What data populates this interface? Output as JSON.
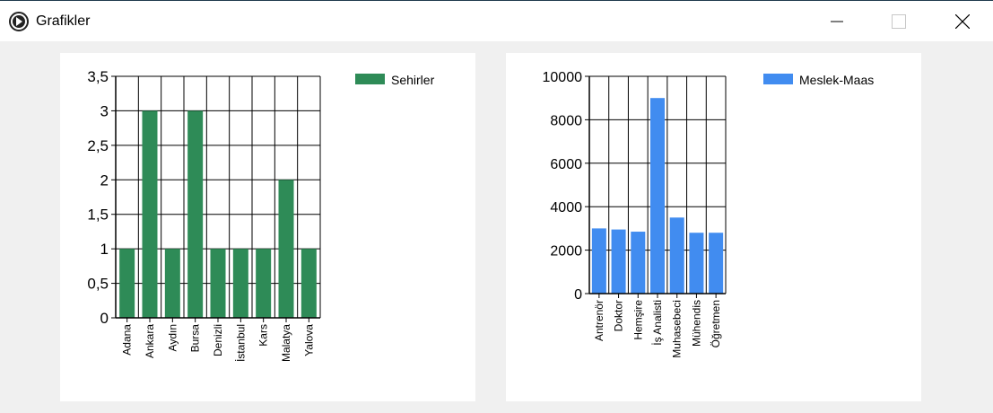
{
  "window": {
    "title": "Grafikler",
    "icon": "app-arrow-icon",
    "controls": [
      "minimize-icon",
      "maximize-icon",
      "close-icon"
    ]
  },
  "chart_data": [
    {
      "type": "bar",
      "categories": [
        "Adana",
        "Ankara",
        "Aydın",
        "Bursa",
        "Denizli",
        "İstanbul",
        "Kars",
        "Malatya",
        "Yalova"
      ],
      "series": [
        {
          "name": "Sehirler",
          "values": [
            1,
            3,
            1,
            3,
            1,
            1,
            1,
            2,
            1
          ],
          "color": "#2e8b57"
        }
      ],
      "yticks": [
        "0",
        "0,5",
        "1",
        "1,5",
        "2",
        "2,5",
        "3",
        "3,5"
      ],
      "ylim": [
        0,
        3.5
      ],
      "grid": true,
      "legend": "top-right"
    },
    {
      "type": "bar",
      "categories": [
        "Antrenör",
        "Doktor",
        "Hemşire",
        "İş Analisti",
        "Muhasebeci",
        "Mühendis",
        "Öğretmen"
      ],
      "series": [
        {
          "name": "Meslek-Maas",
          "values": [
            3000,
            2950,
            2850,
            9000,
            3500,
            2800,
            2800
          ],
          "color": "#418cf0"
        }
      ],
      "yticks": [
        "0",
        "2000",
        "4000",
        "6000",
        "8000",
        "10000"
      ],
      "ylim": [
        0,
        10000
      ],
      "grid": true,
      "legend": "top-right"
    }
  ]
}
